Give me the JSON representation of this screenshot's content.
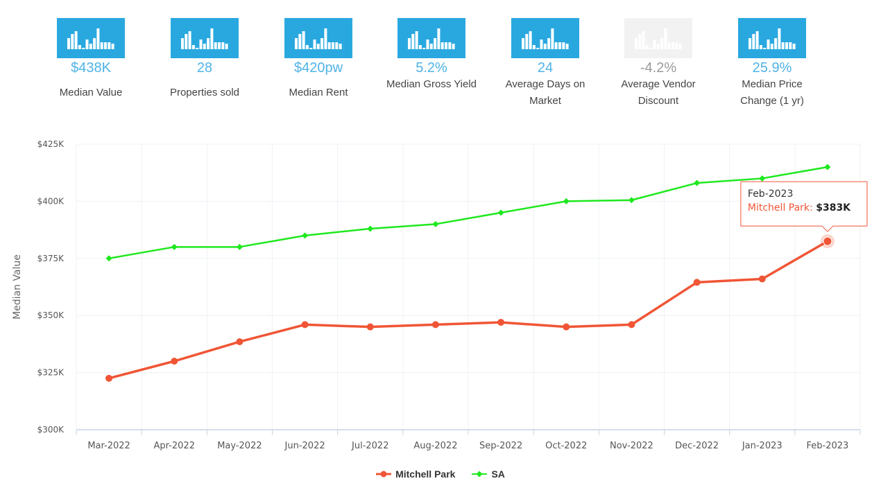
{
  "stats": [
    {
      "value": "$438K",
      "label": "Median Value",
      "active": true
    },
    {
      "value": "28",
      "label": "Properties sold",
      "active": true
    },
    {
      "value": "$420pw",
      "label": "Median Rent",
      "active": true
    },
    {
      "value": "5.2%",
      "label": "Median Gross Yield",
      "active": true
    },
    {
      "value": "24",
      "label": "Average Days on Market",
      "active": true
    },
    {
      "value": "-4.2%",
      "label": "Average Vendor Discount",
      "active": false
    },
    {
      "value": "25.9%",
      "label": "Median Price Change (1 yr)",
      "active": true
    }
  ],
  "colors": {
    "accent": "#29a8e0",
    "value_text": "#4fb3e6",
    "inactive": "#f2f2f2",
    "inactive_text": "#999999",
    "mitchell_park": "#f05535",
    "sa": "#1ee81e"
  },
  "chart_data": {
    "type": "line",
    "categories": [
      "Mar-2022",
      "Apr-2022",
      "May-2022",
      "Jun-2022",
      "Jul-2022",
      "Aug-2022",
      "Sep-2022",
      "Oct-2022",
      "Nov-2022",
      "Dec-2022",
      "Jan-2023",
      "Feb-2023"
    ],
    "series": [
      {
        "name": "Mitchell Park",
        "color": "#f05535",
        "values": [
          322500,
          330000,
          338500,
          346000,
          345000,
          346000,
          347000,
          345000,
          346000,
          364500,
          366000,
          382500
        ]
      },
      {
        "name": "SA",
        "color": "#1ee81e",
        "values": [
          375000,
          380000,
          380000,
          385000,
          388000,
          390000,
          395000,
          400000,
          400500,
          408000,
          410000,
          415000
        ]
      }
    ],
    "ylabel": "Median Value",
    "ylim": [
      300000,
      425000
    ],
    "yticks": [
      "$300K",
      "$325K",
      "$350K",
      "$375K",
      "$400K",
      "$425K"
    ],
    "grid": true,
    "legend": "bottom-center",
    "tooltip": {
      "category": "Feb-2023",
      "series": "Mitchell Park",
      "value_label": "$383K"
    }
  }
}
